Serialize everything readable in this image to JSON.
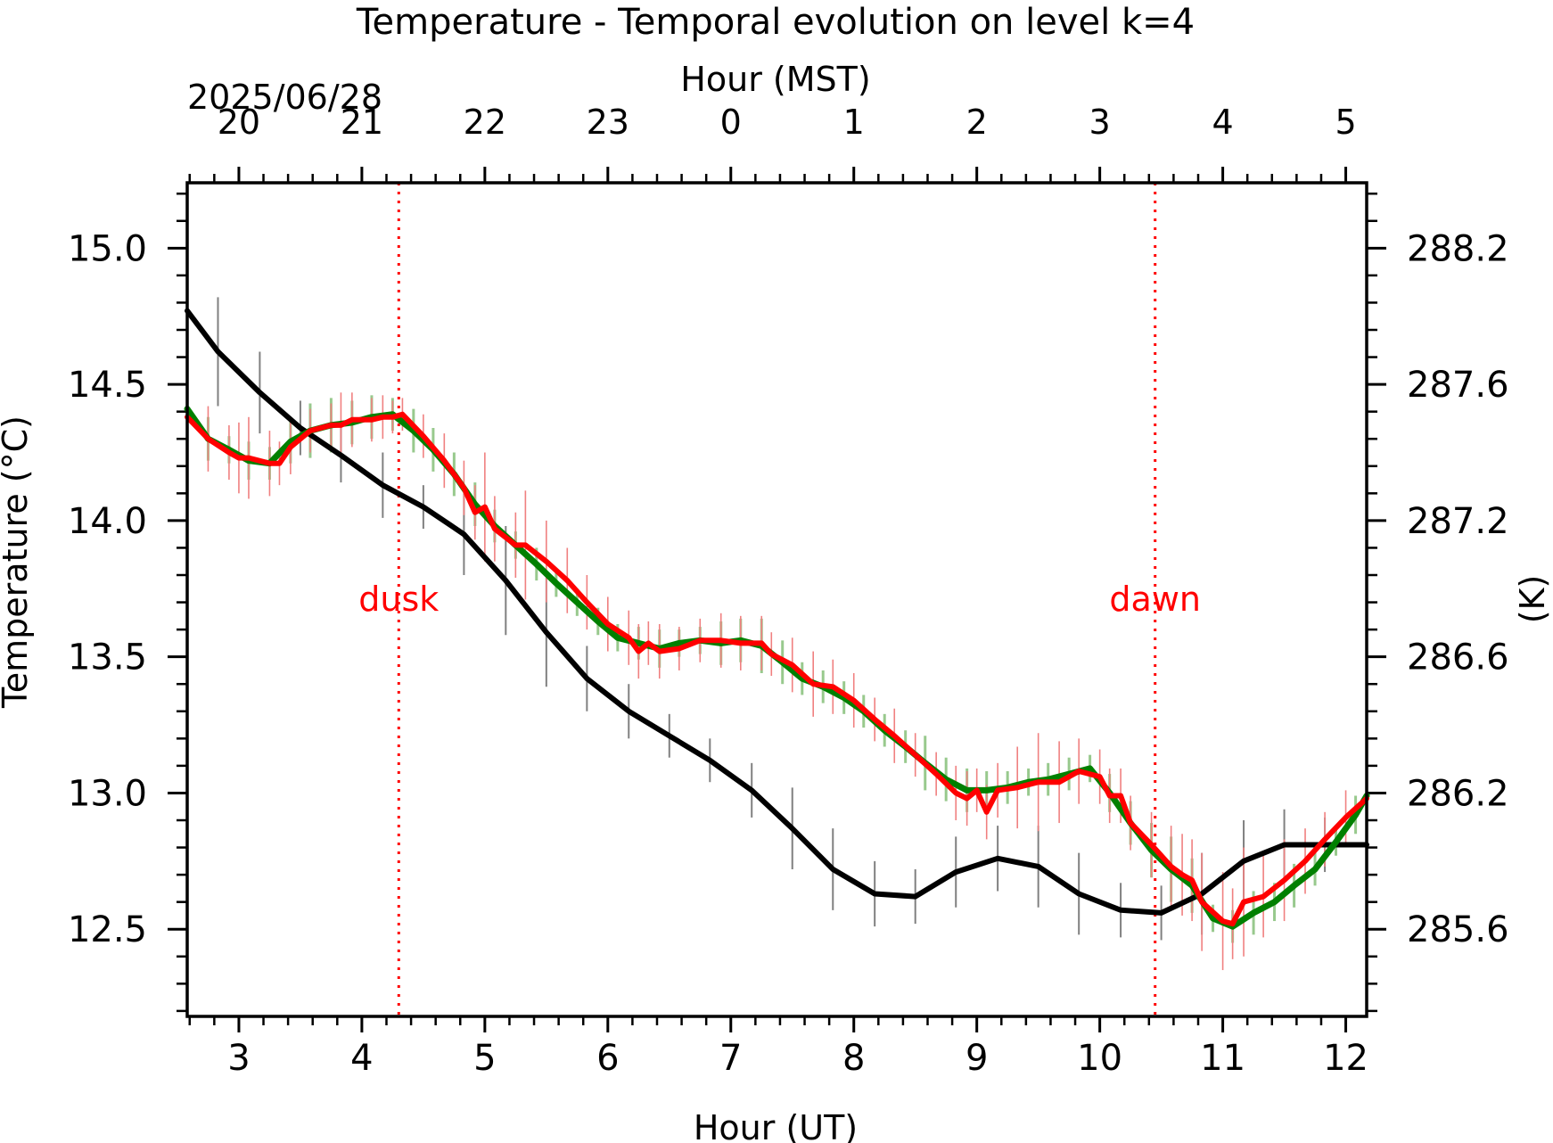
{
  "chart_data": {
    "type": "line",
    "title": "Temperature - Temporal evolution on level k=4",
    "xlabel": "Hour (UT)",
    "xlabel_top": "Hour (MST)",
    "date_label": "2025/06/28",
    "ylabel": "Temperature (°C)",
    "ylabel_right": "(K)",
    "xlim": [
      2.58,
      12.17
    ],
    "ylim": [
      12.18,
      15.24
    ],
    "x_ticks": [
      "3",
      "4",
      "5",
      "6",
      "7",
      "8",
      "9",
      "10",
      "11",
      "12"
    ],
    "x_ticks_top": [
      "20",
      "21",
      "22",
      "23",
      "0",
      "1",
      "2",
      "3",
      "4",
      "5"
    ],
    "y_ticks": [
      "12.5",
      "13.0",
      "13.5",
      "14.0",
      "14.5",
      "15.0"
    ],
    "y_ticks_right": [
      "285.6",
      "286.2",
      "286.6",
      "287.2",
      "287.6",
      "288.2"
    ],
    "grid": false,
    "annotations": [
      {
        "label": "dusk",
        "x": 4.3,
        "color": "#ff0000"
      },
      {
        "label": "dawn",
        "x": 10.45,
        "color": "#ff0000"
      }
    ],
    "series": [
      {
        "color": "#000000",
        "errorbar_color": "#808080",
        "x": [
          2.58,
          2.83,
          3.17,
          3.5,
          3.83,
          4.17,
          4.5,
          4.83,
          5.17,
          5.5,
          5.83,
          6.17,
          6.5,
          6.83,
          7.17,
          7.5,
          7.83,
          8.17,
          8.5,
          8.83,
          9.17,
          9.5,
          9.83,
          10.17,
          10.5,
          10.83,
          11.17,
          11.5,
          11.83,
          12.17
        ],
        "y": [
          14.77,
          14.62,
          14.47,
          14.34,
          14.24,
          14.13,
          14.05,
          13.95,
          13.78,
          13.59,
          13.42,
          13.3,
          13.21,
          13.12,
          13.01,
          12.87,
          12.72,
          12.63,
          12.62,
          12.71,
          12.76,
          12.73,
          12.63,
          12.57,
          12.56,
          12.63,
          12.75,
          12.81,
          12.81,
          12.81
        ],
        "err": [
          0.0,
          0.2,
          0.15,
          0.1,
          0.1,
          0.12,
          0.08,
          0.15,
          0.2,
          0.2,
          0.12,
          0.1,
          0.08,
          0.08,
          0.1,
          0.15,
          0.15,
          0.12,
          0.1,
          0.13,
          0.12,
          0.15,
          0.15,
          0.1,
          0.1,
          0.15,
          0.15,
          0.13,
          0.1,
          0.0
        ]
      },
      {
        "color": "#008000",
        "errorbar_color": "#98c98d",
        "x": [
          2.58,
          2.75,
          2.92,
          3.08,
          3.25,
          3.42,
          3.58,
          3.75,
          3.92,
          4.08,
          4.25,
          4.42,
          4.58,
          4.75,
          4.92,
          5.08,
          5.25,
          5.42,
          5.58,
          5.75,
          5.92,
          6.08,
          6.25,
          6.42,
          6.58,
          6.75,
          6.92,
          7.08,
          7.25,
          7.42,
          7.58,
          7.75,
          7.92,
          8.08,
          8.25,
          8.42,
          8.58,
          8.75,
          8.92,
          9.08,
          9.25,
          9.42,
          9.58,
          9.75,
          9.92,
          10.08,
          10.25,
          10.42,
          10.58,
          10.75,
          10.92,
          11.08,
          11.25,
          11.42,
          11.58,
          11.75,
          11.92,
          12.08,
          12.17
        ],
        "y": [
          14.41,
          14.3,
          14.26,
          14.22,
          14.21,
          14.29,
          14.33,
          14.35,
          14.36,
          14.38,
          14.39,
          14.33,
          14.26,
          14.17,
          14.06,
          13.98,
          13.91,
          13.84,
          13.77,
          13.7,
          13.63,
          13.57,
          13.55,
          13.53,
          13.55,
          13.56,
          13.55,
          13.56,
          13.54,
          13.48,
          13.42,
          13.39,
          13.35,
          13.3,
          13.23,
          13.17,
          13.11,
          13.05,
          13.01,
          13.01,
          13.02,
          13.04,
          13.05,
          13.07,
          13.09,
          13.0,
          12.89,
          12.79,
          12.72,
          12.66,
          12.54,
          12.51,
          12.56,
          12.6,
          12.66,
          12.72,
          12.82,
          12.92,
          12.99
        ],
        "err": [
          0.0,
          0.08,
          0.05,
          0.07,
          0.06,
          0.08,
          0.1,
          0.1,
          0.08,
          0.08,
          0.06,
          0.08,
          0.08,
          0.08,
          0.08,
          0.06,
          0.05,
          0.06,
          0.05,
          0.05,
          0.05,
          0.05,
          0.06,
          0.07,
          0.05,
          0.05,
          0.08,
          0.08,
          0.1,
          0.08,
          0.06,
          0.06,
          0.06,
          0.06,
          0.06,
          0.06,
          0.1,
          0.08,
          0.08,
          0.07,
          0.06,
          0.05,
          0.06,
          0.06,
          0.05,
          0.07,
          0.08,
          0.1,
          0.12,
          0.1,
          0.05,
          0.06,
          0.08,
          0.07,
          0.08,
          0.06,
          0.05,
          0.07,
          0.0
        ]
      },
      {
        "color": "#ff0000",
        "errorbar_color": "#f08080",
        "x": [
          2.58,
          2.75,
          2.92,
          3.0,
          3.08,
          3.25,
          3.33,
          3.42,
          3.58,
          3.75,
          3.83,
          3.92,
          4.08,
          4.17,
          4.25,
          4.33,
          4.5,
          4.67,
          4.83,
          4.92,
          5.0,
          5.08,
          5.25,
          5.33,
          5.5,
          5.67,
          5.83,
          6.0,
          6.17,
          6.25,
          6.33,
          6.42,
          6.58,
          6.75,
          6.92,
          7.08,
          7.25,
          7.33,
          7.5,
          7.67,
          7.83,
          8.0,
          8.17,
          8.33,
          8.5,
          8.67,
          8.83,
          8.92,
          9.0,
          9.08,
          9.17,
          9.33,
          9.5,
          9.67,
          9.83,
          10.0,
          10.08,
          10.17,
          10.25,
          10.42,
          10.58,
          10.67,
          10.75,
          10.83,
          11.0,
          11.08,
          11.17,
          11.33,
          11.5,
          11.67,
          11.83,
          12.0,
          12.17
        ],
        "y": [
          14.38,
          14.3,
          14.25,
          14.23,
          14.23,
          14.21,
          14.21,
          14.27,
          14.33,
          14.35,
          14.35,
          14.37,
          14.37,
          14.38,
          14.38,
          14.39,
          14.31,
          14.22,
          14.12,
          14.03,
          14.05,
          13.97,
          13.91,
          13.91,
          13.85,
          13.78,
          13.7,
          13.62,
          13.57,
          13.52,
          13.55,
          13.52,
          13.53,
          13.56,
          13.56,
          13.55,
          13.55,
          13.51,
          13.47,
          13.4,
          13.39,
          13.34,
          13.27,
          13.21,
          13.14,
          13.07,
          13.0,
          12.98,
          13.01,
          12.93,
          13.01,
          13.02,
          13.04,
          13.04,
          13.08,
          13.06,
          12.99,
          12.99,
          12.89,
          12.81,
          12.73,
          12.7,
          12.68,
          12.6,
          12.53,
          12.52,
          12.6,
          12.62,
          12.68,
          12.75,
          12.83,
          12.91,
          12.98
        ],
        "err": [
          0.0,
          0.12,
          0.1,
          0.13,
          0.15,
          0.12,
          0.08,
          0.1,
          0.08,
          0.08,
          0.12,
          0.1,
          0.08,
          0.08,
          0.06,
          0.06,
          0.08,
          0.1,
          0.1,
          0.1,
          0.2,
          0.12,
          0.12,
          0.2,
          0.15,
          0.12,
          0.1,
          0.1,
          0.1,
          0.1,
          0.08,
          0.1,
          0.08,
          0.08,
          0.1,
          0.1,
          0.1,
          0.08,
          0.1,
          0.12,
          0.1,
          0.1,
          0.08,
          0.1,
          0.08,
          0.08,
          0.1,
          0.1,
          0.08,
          0.1,
          0.1,
          0.15,
          0.18,
          0.15,
          0.12,
          0.1,
          0.1,
          0.1,
          0.1,
          0.12,
          0.15,
          0.15,
          0.15,
          0.18,
          0.18,
          0.13,
          0.2,
          0.15,
          0.15,
          0.12,
          0.1,
          0.1,
          0.0
        ]
      }
    ]
  }
}
